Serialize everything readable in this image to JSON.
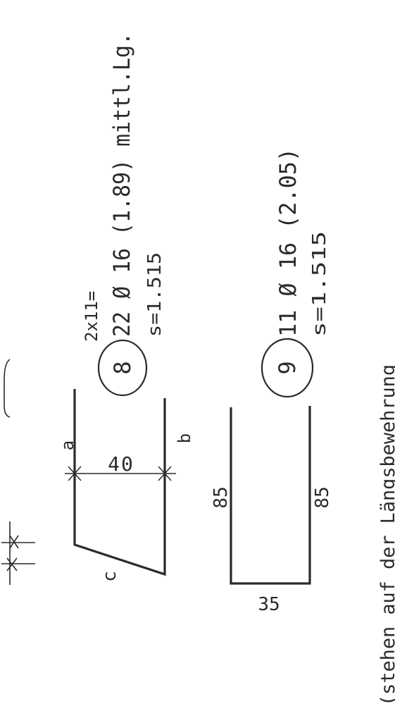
{
  "bar8": {
    "count_note": "2x11=",
    "number": "8",
    "spec": "22 Ø 16 (1.89) mittl.Lg.",
    "spacing": "s=1.515",
    "label_a": "a",
    "label_b": "b",
    "dim_width": "40",
    "label_c": "c"
  },
  "bar9": {
    "number": "9",
    "spec": "11 Ø 16 (2.05)",
    "spacing": "s=1.515",
    "dim_left": "85",
    "dim_right": "85",
    "dim_bottom": "35"
  },
  "note": "(stehen auf der Längsbewehrung",
  "colors": {
    "ink": "#2a2a2a",
    "paper": "#ffffff"
  }
}
